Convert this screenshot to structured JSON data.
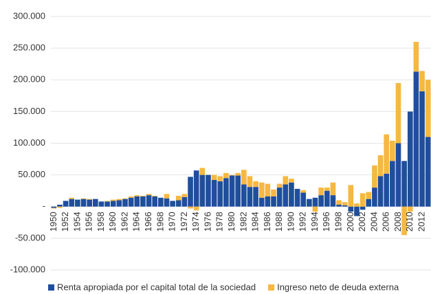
{
  "chart_data": {
    "type": "stacked_bar",
    "categories": [
      "1950",
      null,
      "1952",
      null,
      "1954",
      null,
      "1956",
      null,
      "1958",
      null,
      "1960",
      null,
      "1962",
      null,
      "1964",
      null,
      "1966",
      null,
      "1968",
      null,
      "1970",
      null,
      "1972",
      null,
      "1974",
      null,
      "1976",
      null,
      "1978",
      null,
      "1980",
      null,
      "1982",
      null,
      "1984",
      null,
      "1986",
      null,
      "1988",
      null,
      "1990",
      null,
      "1992",
      null,
      "1994",
      null,
      "1996",
      null,
      "1998",
      null,
      "2000",
      null,
      "2002",
      null,
      "2004",
      null,
      "2006",
      null,
      "2008",
      null,
      "2010",
      null,
      "2012",
      null
    ],
    "series": [
      {
        "name": "Renta apropiada por el capital total de la sociedad",
        "color": "#1f4e9c",
        "values": [
          -2000,
          3000,
          9000,
          12000,
          11000,
          12000,
          11000,
          12000,
          8000,
          8000,
          9000,
          10000,
          12000,
          14000,
          16000,
          16000,
          18000,
          16000,
          14000,
          13000,
          9000,
          10000,
          15000,
          47000,
          57000,
          50000,
          50000,
          42000,
          40000,
          45000,
          49000,
          49000,
          35000,
          31000,
          31000,
          14000,
          16000,
          16000,
          30000,
          35000,
          38000,
          28000,
          22000,
          12000,
          14000,
          18000,
          25000,
          18000,
          3000,
          2000,
          -8000,
          -15000,
          -5000,
          12000,
          30000,
          48000,
          52000,
          72000,
          100000,
          72000,
          150000,
          213000,
          182000,
          110000
        ]
      },
      {
        "name": "Ingreso neto de deuda externa",
        "color": "#f5b841",
        "values": [
          -1000,
          -2000,
          0,
          2000,
          0,
          1000,
          1000,
          0,
          0,
          1000,
          2000,
          2000,
          1000,
          2000,
          2000,
          1000,
          2000,
          1000,
          0,
          7000,
          0,
          7000,
          5000,
          -3000,
          -6000,
          11000,
          0,
          8000,
          8000,
          8000,
          1000,
          4000,
          23000,
          17000,
          9000,
          24000,
          20000,
          11000,
          6000,
          13000,
          6000,
          0,
          4000,
          0,
          -8000,
          12000,
          5000,
          20000,
          7000,
          5000,
          34000,
          5000,
          21000,
          11000,
          35000,
          33000,
          62000,
          32000,
          95000,
          -45000,
          -8000,
          47000,
          32000,
          90000
        ]
      }
    ],
    "ylim": [
      -100000,
      300000
    ],
    "yticks": [
      {
        "value": -100000,
        "label": "-100.000"
      },
      {
        "value": -50000,
        "label": "-50.000"
      },
      {
        "value": 0,
        "label": "-"
      },
      {
        "value": 50000,
        "label": "50.000"
      },
      {
        "value": 100000,
        "label": "100.000"
      },
      {
        "value": 150000,
        "label": "150.000"
      },
      {
        "value": 200000,
        "label": "200.000"
      },
      {
        "value": 250000,
        "label": "250.000"
      },
      {
        "value": 300000,
        "label": "300.000"
      }
    ],
    "grid": true,
    "legend": "bottom"
  }
}
